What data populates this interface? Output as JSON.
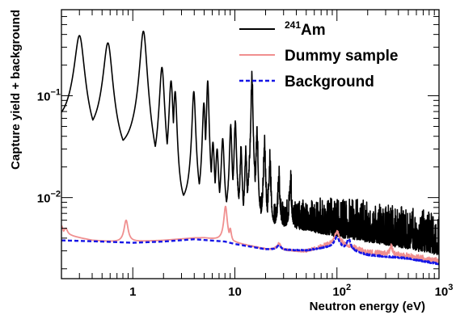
{
  "chart_data": {
    "type": "line",
    "title": "",
    "xlabel": "Neutron energy (eV)",
    "ylabel": "Capture yield + background",
    "x_scale": "log",
    "y_scale": "log",
    "xlim": [
      0.2,
      1000
    ],
    "ylim": [
      0.0016,
      0.7
    ],
    "grid": false,
    "legend_position": "top-right",
    "x_tick_labels": [
      {
        "value": 1,
        "label": "1"
      },
      {
        "value": 10,
        "label": "10"
      },
      {
        "value": 100,
        "base": "10",
        "exp": "2"
      },
      {
        "value": 1000,
        "base": "10",
        "exp": "3"
      }
    ],
    "y_tick_labels": [
      {
        "value": 0.01,
        "base": "10",
        "exp": "−2"
      },
      {
        "value": 0.1,
        "base": "10",
        "exp": "−1"
      }
    ],
    "series": [
      {
        "name_sup": "241",
        "name": "Am",
        "color": "#000000",
        "style": "solid",
        "continuum": [
          [
            0.2,
            0.04
          ],
          [
            0.3,
            0.036
          ],
          [
            1,
            0.02
          ],
          [
            2,
            0.009
          ],
          [
            5,
            0.0065
          ],
          [
            10,
            0.0055
          ],
          [
            20,
            0.0052
          ],
          [
            50,
            0.0048
          ],
          [
            100,
            0.0042
          ],
          [
            300,
            0.0035
          ],
          [
            1000,
            0.0028
          ]
        ],
        "resonances": [
          [
            0.3,
            0.39,
            0.1
          ],
          [
            0.57,
            0.33,
            0.09
          ],
          [
            1.27,
            0.43,
            0.07
          ],
          [
            1.93,
            0.19,
            0.05
          ],
          [
            2.37,
            0.14,
            0.04
          ],
          [
            2.6,
            0.11,
            0.035
          ],
          [
            3.96,
            0.11,
            0.035
          ],
          [
            4.97,
            0.085,
            0.03
          ],
          [
            5.42,
            0.14,
            0.025
          ],
          [
            6.1,
            0.035,
            0.03
          ],
          [
            6.7,
            0.03,
            0.03
          ],
          [
            7.6,
            0.038,
            0.03
          ],
          [
            9.1,
            0.05,
            0.025
          ],
          [
            10.1,
            0.052,
            0.025
          ],
          [
            11.5,
            0.03,
            0.02
          ],
          [
            12.8,
            0.028,
            0.02
          ],
          [
            14.7,
            0.14,
            0.02
          ],
          [
            16.5,
            0.04,
            0.02
          ],
          [
            19.5,
            0.03,
            0.02
          ],
          [
            22,
            0.02,
            0.02
          ],
          [
            27,
            0.014,
            0.02
          ],
          [
            35,
            0.013,
            0.02
          ]
        ],
        "noise_factor": [
          2.5,
          1.7
        ]
      },
      {
        "name": "Dummy sample",
        "color": "#f08f8f",
        "style": "solid",
        "continuum": [
          [
            0.2,
            0.0043
          ],
          [
            0.25,
            0.0042
          ],
          [
            0.4,
            0.0038
          ],
          [
            0.8,
            0.0036
          ],
          [
            1,
            0.0037
          ],
          [
            2,
            0.0038
          ],
          [
            4,
            0.004
          ],
          [
            5,
            0.004
          ],
          [
            10,
            0.0036
          ],
          [
            20,
            0.0031
          ],
          [
            50,
            0.0029
          ],
          [
            100,
            0.0035
          ],
          [
            200,
            0.0028
          ],
          [
            500,
            0.0026
          ],
          [
            1000,
            0.0023
          ]
        ],
        "resonances": [
          [
            0.2,
            0.0053,
            0.04
          ],
          [
            0.22,
            0.005,
            0.05
          ],
          [
            0.86,
            0.006,
            0.05
          ],
          [
            8.1,
            0.0082,
            0.04
          ],
          [
            9.0,
            0.005,
            0.03
          ],
          [
            27,
            0.0035,
            0.05
          ],
          [
            100,
            0.0045,
            0.06
          ],
          [
            340,
            0.0032,
            0.03
          ]
        ],
        "noise_factor": [
          1.1,
          1.2
        ]
      },
      {
        "name": "Background",
        "color": "#1515e6",
        "style": "dashed",
        "continuum": [
          [
            0.2,
            0.0038
          ],
          [
            0.5,
            0.0037
          ],
          [
            1,
            0.0036
          ],
          [
            2,
            0.0037
          ],
          [
            4,
            0.0039
          ],
          [
            8,
            0.0037
          ],
          [
            10,
            0.0035
          ],
          [
            20,
            0.0031
          ],
          [
            50,
            0.003
          ],
          [
            100,
            0.0033
          ],
          [
            200,
            0.0027
          ],
          [
            500,
            0.0025
          ],
          [
            1000,
            0.0022
          ]
        ],
        "resonances": [
          [
            27,
            0.0034,
            0.05
          ],
          [
            60,
            0.0031,
            0.05
          ],
          [
            100,
            0.0041,
            0.06
          ],
          [
            130,
            0.0039,
            0.05
          ]
        ],
        "noise_factor": [
          1.03,
          1.06
        ]
      }
    ]
  }
}
